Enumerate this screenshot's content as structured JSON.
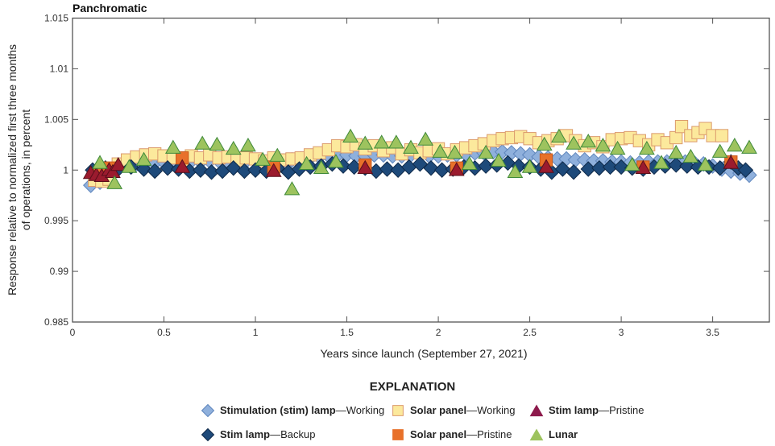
{
  "chart_data": {
    "type": "scatter",
    "title": "Panchromatic",
    "xlabel": "Years since launch (September 27, 2021)",
    "ylabel": [
      "Response relative to normalized first three months",
      "of operations, in percent"
    ],
    "xlim": [
      0,
      3.81
    ],
    "ylim": [
      0.985,
      1.015
    ],
    "xticks": [
      "0",
      "0.5",
      "1",
      "1.5",
      "2",
      "2.5",
      "3",
      "3.5"
    ],
    "xtick_values": [
      0,
      0.5,
      1,
      1.5,
      2,
      2.5,
      3,
      3.5
    ],
    "yticks": [
      "0.985",
      "0.99",
      "0.995",
      "1",
      "1.005",
      "1.01",
      "1.015"
    ],
    "ytick_values": [
      0.985,
      0.99,
      0.995,
      1,
      1.005,
      1.01,
      1.015
    ],
    "grid": false,
    "legend": {
      "title": "EXPLANATION",
      "placement": "bottom"
    },
    "series": [
      {
        "name_bold": "Stimulation (stim) lamp",
        "name_rest": "—Working",
        "marker": "diamond",
        "fill": "#8fb0dc",
        "stroke": "#5f86bd",
        "points": [
          [
            0.1,
            0.9985
          ],
          [
            0.15,
            0.9988
          ],
          [
            0.2,
            0.9995
          ],
          [
            0.25,
            1.0002
          ],
          [
            0.3,
            1.0005
          ],
          [
            0.35,
            1.0006
          ],
          [
            0.4,
            1.0007
          ],
          [
            0.45,
            1.0007
          ],
          [
            0.5,
            1.0008
          ],
          [
            0.55,
            1.0008
          ],
          [
            0.6,
            1.0008
          ],
          [
            0.65,
            1.0009
          ],
          [
            0.7,
            1.0008
          ],
          [
            0.75,
            1.0009
          ],
          [
            0.8,
            1.0009
          ],
          [
            0.85,
            1.0008
          ],
          [
            0.9,
            1.0009
          ],
          [
            0.95,
            1.0009
          ],
          [
            1.0,
            1.0009
          ],
          [
            1.05,
            1.0008
          ],
          [
            1.1,
            1.0009
          ],
          [
            1.15,
            1.0009
          ],
          [
            1.2,
            1.001
          ],
          [
            1.25,
            1.0011
          ],
          [
            1.3,
            1.0012
          ],
          [
            1.35,
            1.0013
          ],
          [
            1.4,
            1.0014
          ],
          [
            1.45,
            1.0015
          ],
          [
            1.5,
            1.0015
          ],
          [
            1.55,
            1.0014
          ],
          [
            1.6,
            1.0014
          ],
          [
            1.65,
            1.0015
          ],
          [
            1.7,
            1.0015
          ],
          [
            1.75,
            1.0014
          ],
          [
            1.8,
            1.0014
          ],
          [
            1.85,
            1.0015
          ],
          [
            1.9,
            1.0015
          ],
          [
            1.95,
            1.0014
          ],
          [
            2.0,
            1.0014
          ],
          [
            2.05,
            1.0015
          ],
          [
            2.1,
            1.0015
          ],
          [
            2.15,
            1.0016
          ],
          [
            2.2,
            1.0017
          ],
          [
            2.25,
            1.0017
          ],
          [
            2.3,
            1.0018
          ],
          [
            2.35,
            1.0018
          ],
          [
            2.4,
            1.0017
          ],
          [
            2.45,
            1.0016
          ],
          [
            2.5,
            1.0015
          ],
          [
            2.55,
            1.0013
          ],
          [
            2.6,
            1.0012
          ],
          [
            2.65,
            1.0011
          ],
          [
            2.7,
            1.0011
          ],
          [
            2.75,
            1.001
          ],
          [
            2.8,
            1.001
          ],
          [
            2.85,
            1.0009
          ],
          [
            2.9,
            1.0009
          ],
          [
            2.95,
            1.0008
          ],
          [
            3.0,
            1.0008
          ],
          [
            3.05,
            1.0007
          ],
          [
            3.1,
            1.0007
          ],
          [
            3.15,
            1.0008
          ],
          [
            3.2,
            1.0008
          ],
          [
            3.25,
            1.0008
          ],
          [
            3.3,
            1.0008
          ],
          [
            3.35,
            1.0008
          ],
          [
            3.4,
            1.0007
          ],
          [
            3.45,
            1.0006
          ],
          [
            3.5,
            1.0004
          ],
          [
            3.55,
            1.0001
          ],
          [
            3.6,
            0.9999
          ],
          [
            3.65,
            0.9997
          ],
          [
            3.7,
            0.9995
          ]
        ]
      },
      {
        "name_bold": "Solar panel",
        "name_rest": "—Working",
        "marker": "square",
        "fill": "#fce99c",
        "stroke": "#db9a6c",
        "points": [
          [
            0.12,
            0.999
          ],
          [
            0.16,
            0.9989
          ],
          [
            0.2,
            0.9991
          ],
          [
            0.25,
            1.0006
          ],
          [
            0.3,
            1.001
          ],
          [
            0.35,
            1.0013
          ],
          [
            0.4,
            1.0015
          ],
          [
            0.45,
            1.0016
          ],
          [
            0.5,
            1.0014
          ],
          [
            0.55,
            1.0012
          ],
          [
            0.6,
            1.001
          ],
          [
            0.65,
            1.0014
          ],
          [
            0.7,
            1.0012
          ],
          [
            0.75,
            1.0015
          ],
          [
            0.8,
            1.0012
          ],
          [
            0.85,
            1.0013
          ],
          [
            0.9,
            1.001
          ],
          [
            0.95,
            1.0012
          ],
          [
            1.0,
            1.0011
          ],
          [
            1.05,
            1.0009
          ],
          [
            1.1,
            1.0012
          ],
          [
            1.15,
            1.001
          ],
          [
            1.2,
            1.0011
          ],
          [
            1.25,
            1.0012
          ],
          [
            1.3,
            1.0015
          ],
          [
            1.35,
            1.0017
          ],
          [
            1.4,
            1.002
          ],
          [
            1.45,
            1.0024
          ],
          [
            1.5,
            1.0023
          ],
          [
            1.55,
            1.0025
          ],
          [
            1.6,
            1.0021
          ],
          [
            1.65,
            1.0024
          ],
          [
            1.7,
            1.0019
          ],
          [
            1.75,
            1.0022
          ],
          [
            1.8,
            1.0016
          ],
          [
            1.85,
            1.002
          ],
          [
            1.9,
            1.0017
          ],
          [
            1.95,
            1.0019
          ],
          [
            2.0,
            1.0021
          ],
          [
            2.05,
            1.0016
          ],
          [
            2.1,
            1.002
          ],
          [
            2.15,
            1.0022
          ],
          [
            2.2,
            1.0024
          ],
          [
            2.25,
            1.0026
          ],
          [
            2.3,
            1.0029
          ],
          [
            2.35,
            1.0031
          ],
          [
            2.4,
            1.0032
          ],
          [
            2.45,
            1.0033
          ],
          [
            2.5,
            1.0031
          ],
          [
            2.55,
            1.0027
          ],
          [
            2.6,
            1.0029
          ],
          [
            2.65,
            1.0031
          ],
          [
            2.7,
            1.0034
          ],
          [
            2.75,
            1.0029
          ],
          [
            2.8,
            1.0024
          ],
          [
            2.85,
            1.0027
          ],
          [
            2.9,
            1.0023
          ],
          [
            2.95,
            1.003
          ],
          [
            3.0,
            1.0031
          ],
          [
            3.05,
            1.0032
          ],
          [
            3.1,
            1.0029
          ],
          [
            3.15,
            1.0025
          ],
          [
            3.2,
            1.003
          ],
          [
            3.25,
            1.0027
          ],
          [
            3.3,
            1.0032
          ],
          [
            3.33,
            1.0043
          ],
          [
            3.38,
            1.0034
          ],
          [
            3.42,
            1.0037
          ],
          [
            3.46,
            1.0041
          ],
          [
            3.5,
            1.0034
          ],
          [
            3.55,
            1.0034
          ]
        ]
      },
      {
        "name_bold": "Stim lamp",
        "name_rest": "—Backup",
        "marker": "diamond",
        "fill": "#1e4a7a",
        "stroke": "#0f2a4a",
        "points": [
          [
            0.11,
            1.0
          ],
          [
            0.18,
            1.0002
          ],
          [
            0.25,
            1.0001
          ],
          [
            0.32,
            1.0003
          ],
          [
            0.39,
            1.0001
          ],
          [
            0.45,
            0.9999
          ],
          [
            0.52,
            1.0002
          ],
          [
            0.58,
            1.0001
          ],
          [
            0.64,
            0.9999
          ],
          [
            0.7,
            1.0
          ],
          [
            0.76,
            0.9998
          ],
          [
            0.82,
            0.9999
          ],
          [
            0.88,
            1.0002
          ],
          [
            0.94,
            0.9999
          ],
          [
            1.0,
            1.0
          ],
          [
            1.06,
            0.9999
          ],
          [
            1.12,
            1.0002
          ],
          [
            1.18,
            0.9998
          ],
          [
            1.24,
            1.0001
          ],
          [
            1.3,
            1.0003
          ],
          [
            1.36,
            1.0004
          ],
          [
            1.42,
            1.0006
          ],
          [
            1.48,
            1.0004
          ],
          [
            1.54,
            1.0003
          ],
          [
            1.6,
            1.0002
          ],
          [
            1.66,
            0.9999
          ],
          [
            1.72,
            1.0001
          ],
          [
            1.78,
            1.0
          ],
          [
            1.84,
            1.0003
          ],
          [
            1.9,
            1.0006
          ],
          [
            1.96,
            1.0002
          ],
          [
            2.02,
            1.0
          ],
          [
            2.08,
            1.0001
          ],
          [
            2.14,
            1.0003
          ],
          [
            2.2,
            1.0002
          ],
          [
            2.26,
            1.0004
          ],
          [
            2.32,
            1.0005
          ],
          [
            2.38,
            1.0007
          ],
          [
            2.44,
            1.0004
          ],
          [
            2.5,
            1.0003
          ],
          [
            2.56,
            1.0001
          ],
          [
            2.62,
            0.9998
          ],
          [
            2.68,
            1.0001
          ],
          [
            2.74,
            0.9998
          ],
          [
            2.82,
            1.0001
          ],
          [
            2.88,
            1.0002
          ],
          [
            2.94,
            1.0003
          ],
          [
            3.0,
            1.0003
          ],
          [
            3.06,
            1.0002
          ],
          [
            3.12,
            1.0001
          ],
          [
            3.18,
            1.0003
          ],
          [
            3.24,
            1.0004
          ],
          [
            3.3,
            1.0005
          ],
          [
            3.36,
            1.0004
          ],
          [
            3.42,
            1.0003
          ],
          [
            3.48,
            1.0003
          ],
          [
            3.54,
            1.0002
          ],
          [
            3.6,
            1.0008
          ],
          [
            3.64,
            1.0002
          ],
          [
            3.68,
            1.0
          ]
        ]
      },
      {
        "name_bold": "Solar panel",
        "name_rest": "—Pristine",
        "marker": "square",
        "fill": "#e8712a",
        "stroke": "#c85a1a",
        "points": [
          [
            0.15,
            0.9997
          ],
          [
            0.2,
            1.0002
          ],
          [
            0.6,
            1.0012
          ],
          [
            1.1,
            1.0003
          ],
          [
            1.6,
            1.0005
          ],
          [
            2.1,
            1.0002
          ],
          [
            2.59,
            1.001
          ],
          [
            3.12,
            1.0003
          ],
          [
            3.6,
            1.0008
          ]
        ]
      },
      {
        "name_bold": "Stim lamp",
        "name_rest": "—Pristine",
        "marker": "triangle",
        "fill": "#9b1b2e",
        "stroke": "#5a0f1a",
        "legend_fill": "#8d1a4c",
        "points": [
          [
            0.1,
            0.9997
          ],
          [
            0.13,
            0.9995
          ],
          [
            0.16,
            0.9994
          ],
          [
            0.2,
            1.0
          ],
          [
            0.22,
            0.9998
          ],
          [
            0.25,
            1.0005
          ],
          [
            0.6,
            1.0003
          ],
          [
            1.1,
            0.9999
          ],
          [
            1.6,
            1.0002
          ],
          [
            2.1,
            1.0
          ],
          [
            2.59,
            1.0003
          ],
          [
            3.12,
            1.0002
          ],
          [
            3.6,
            1.0007
          ]
        ]
      },
      {
        "name_bold": "Lunar",
        "name_rest": "",
        "marker": "triangle",
        "fill": "#9dc35e",
        "stroke": "#3f8a3a",
        "points": [
          [
            0.15,
            1.0007
          ],
          [
            0.23,
            0.9987
          ],
          [
            0.31,
            1.0003
          ],
          [
            0.39,
            1.001
          ],
          [
            0.55,
            1.0022
          ],
          [
            0.71,
            1.0026
          ],
          [
            0.79,
            1.0025
          ],
          [
            0.88,
            1.0021
          ],
          [
            0.96,
            1.0024
          ],
          [
            1.04,
            1.001
          ],
          [
            1.12,
            1.0014
          ],
          [
            1.2,
            0.9981
          ],
          [
            1.28,
            1.0006
          ],
          [
            1.36,
            1.0002
          ],
          [
            1.44,
            1.0008
          ],
          [
            1.52,
            1.0033
          ],
          [
            1.6,
            1.0026
          ],
          [
            1.69,
            1.0027
          ],
          [
            1.77,
            1.0027
          ],
          [
            1.85,
            1.0022
          ],
          [
            1.93,
            1.003
          ],
          [
            2.01,
            1.0018
          ],
          [
            2.09,
            1.0017
          ],
          [
            2.17,
            1.0006
          ],
          [
            2.26,
            1.0017
          ],
          [
            2.33,
            1.0009
          ],
          [
            2.42,
            0.9998
          ],
          [
            2.5,
            1.0003
          ],
          [
            2.58,
            1.0025
          ],
          [
            2.66,
            1.0033
          ],
          [
            2.74,
            1.0026
          ],
          [
            2.82,
            1.0028
          ],
          [
            2.9,
            1.0024
          ],
          [
            2.98,
            1.0021
          ],
          [
            3.06,
            1.0005
          ],
          [
            3.14,
            1.0021
          ],
          [
            3.22,
            1.0007
          ],
          [
            3.3,
            1.0017
          ],
          [
            3.38,
            1.0013
          ],
          [
            3.46,
            1.0005
          ],
          [
            3.54,
            1.0018
          ],
          [
            3.62,
            1.0024
          ],
          [
            3.7,
            1.0022
          ]
        ]
      }
    ]
  }
}
